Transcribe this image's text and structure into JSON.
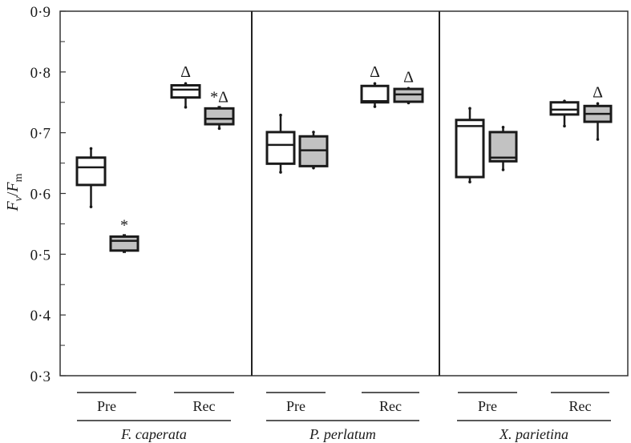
{
  "chart_data": {
    "type": "box",
    "title": "",
    "ylabel": "Fv/Fm",
    "ylabel_parts": {
      "F1": "F",
      "sub1": "v",
      "slash": "/",
      "F2": "F",
      "sub2": "m"
    },
    "ylim": [
      0.3,
      0.9
    ],
    "yticks": [
      "0·3",
      "0·4",
      "0·5",
      "0·6",
      "0·7",
      "0·8",
      "0·9"
    ],
    "ytick_values": [
      0.3,
      0.4,
      0.5,
      0.6,
      0.7,
      0.8,
      0.9
    ],
    "grid": false,
    "legend": "white boxes and grey boxes are two treatments (unlabelled)",
    "fill_colors": {
      "white": "#ffffff",
      "grey": "#c2c2c2"
    },
    "groups": [
      {
        "species": "F. caperata",
        "phases": [
          {
            "label": "Pre",
            "boxes": [
              {
                "fill": "white",
                "whisker_high": 0.674,
                "q3": 0.659,
                "median": 0.643,
                "q1": 0.614,
                "whisker_low": 0.578,
                "annotation": ""
              },
              {
                "fill": "grey",
                "whisker_high": 0.529,
                "q3": 0.529,
                "median": 0.522,
                "q1": 0.506,
                "whisker_low": 0.506,
                "annotation": "*"
              }
            ]
          },
          {
            "label": "Rec",
            "boxes": [
              {
                "fill": "white",
                "whisker_high": 0.781,
                "q3": 0.778,
                "median": 0.771,
                "q1": 0.758,
                "whisker_low": 0.742,
                "annotation": "Δ"
              },
              {
                "fill": "grey",
                "whisker_high": 0.74,
                "q3": 0.74,
                "median": 0.723,
                "q1": 0.714,
                "whisker_low": 0.707,
                "annotation": "*Δ"
              }
            ]
          }
        ]
      },
      {
        "species": "P. perlatum",
        "phases": [
          {
            "label": "Pre",
            "boxes": [
              {
                "fill": "white",
                "whisker_high": 0.729,
                "q3": 0.701,
                "median": 0.68,
                "q1": 0.649,
                "whisker_low": 0.635,
                "annotation": ""
              },
              {
                "fill": "grey",
                "whisker_high": 0.701,
                "q3": 0.694,
                "median": 0.671,
                "q1": 0.645,
                "whisker_low": 0.642,
                "annotation": ""
              }
            ]
          },
          {
            "label": "Rec",
            "boxes": [
              {
                "fill": "white",
                "whisker_high": 0.781,
                "q3": 0.777,
                "median": 0.752,
                "q1": 0.75,
                "whisker_low": 0.743,
                "annotation": "Δ"
              },
              {
                "fill": "grey",
                "whisker_high": 0.773,
                "q3": 0.772,
                "median": 0.763,
                "q1": 0.751,
                "whisker_low": 0.749,
                "annotation": "Δ"
              }
            ]
          }
        ]
      },
      {
        "species": "X. parietina",
        "phases": [
          {
            "label": "Pre",
            "boxes": [
              {
                "fill": "white",
                "whisker_high": 0.74,
                "q3": 0.721,
                "median": 0.711,
                "q1": 0.627,
                "whisker_low": 0.619,
                "annotation": ""
              },
              {
                "fill": "grey",
                "whisker_high": 0.709,
                "q3": 0.701,
                "median": 0.659,
                "q1": 0.653,
                "whisker_low": 0.639,
                "annotation": ""
              }
            ]
          },
          {
            "label": "Rec",
            "boxes": [
              {
                "fill": "white",
                "whisker_high": 0.752,
                "q3": 0.75,
                "median": 0.738,
                "q1": 0.73,
                "whisker_low": 0.711,
                "annotation": ""
              },
              {
                "fill": "grey",
                "whisker_high": 0.748,
                "q3": 0.744,
                "median": 0.731,
                "q1": 0.718,
                "whisker_low": 0.689,
                "annotation": "Δ"
              }
            ]
          }
        ]
      }
    ]
  },
  "axis": {
    "ticks": [
      "0·3",
      "0·4",
      "0·5",
      "0·6",
      "0·7",
      "0·8",
      "0·9"
    ]
  },
  "labels": {
    "pre": "Pre",
    "rec": "Rec",
    "species": [
      "F. caperata",
      "P. perlatum",
      "X. parietina"
    ]
  }
}
